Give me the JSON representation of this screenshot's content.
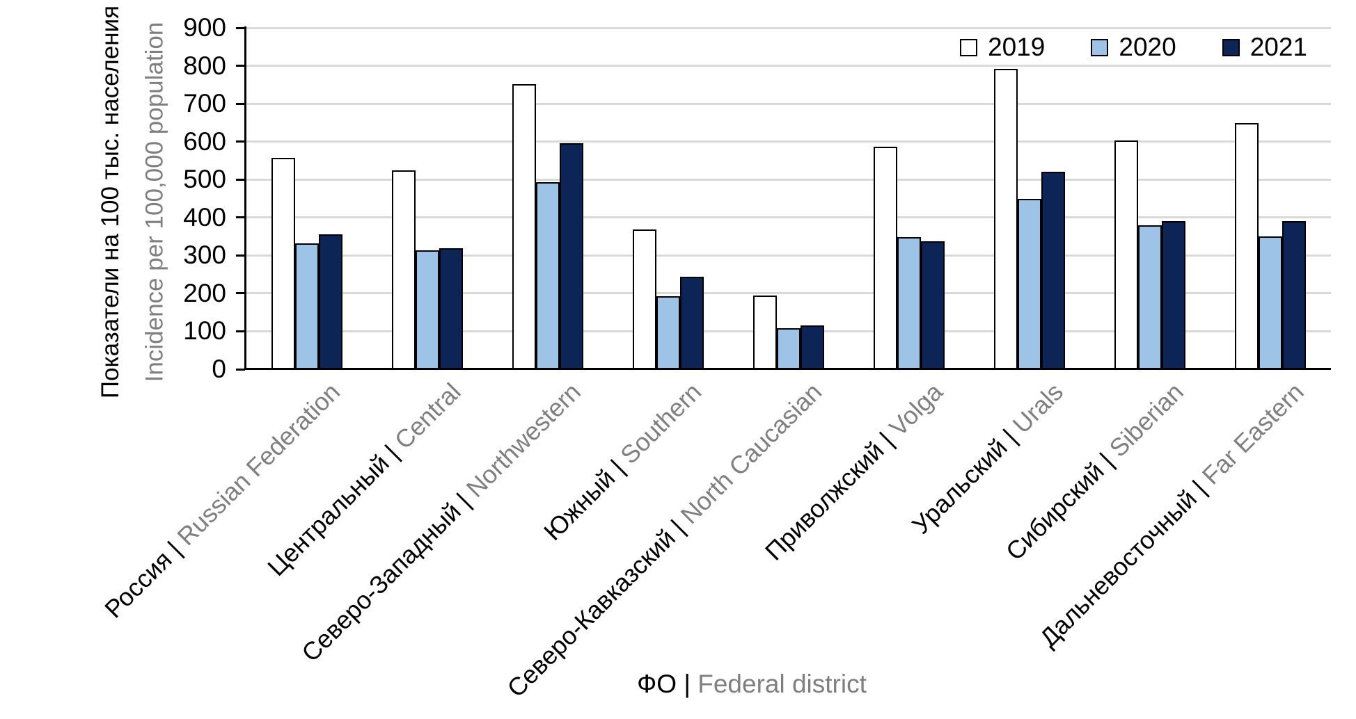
{
  "y_axis": {
    "title_ru": "Показатели на 100 тыс. населения",
    "title_en": "Incidence per 100,000 population",
    "tick_labels": [
      "0",
      "100",
      "200",
      "300",
      "400",
      "500",
      "600",
      "700",
      "800",
      "900"
    ]
  },
  "x_axis": {
    "title_ru": "ФО",
    "title_separator": "|",
    "title_en": "Federal district"
  },
  "colors": {
    "bar_border": "#000000",
    "gridline": "#D9D9D9",
    "primary_text": "#000000",
    "secondary_text": "#7F7F7F",
    "series_2019_fill": "#FFFFFF",
    "series_2020_fill": "#9DC3E6",
    "series_2021_fill": "#0D2556"
  },
  "chart_data": {
    "type": "bar",
    "title": "",
    "xlabel": "ФО | Federal district",
    "ylabel": "Показатели на 100 тыс. населения | Incidence per 100,000 population",
    "ylim": [
      0,
      900
    ],
    "ytick_step": 100,
    "grid": true,
    "legend_position": "top-right",
    "category_separator": "|",
    "categories": [
      {
        "ru": "Россия",
        "en": "Russian Federation"
      },
      {
        "ru": "Центральный",
        "en": "Central"
      },
      {
        "ru": "Северо-Западный",
        "en": "Northwestern"
      },
      {
        "ru": "Южный",
        "en": "Southern"
      },
      {
        "ru": "Северо-Кавказский",
        "en": "North Caucasian"
      },
      {
        "ru": "Приволжский",
        "en": "Volga"
      },
      {
        "ru": "Уральский",
        "en": "Urals"
      },
      {
        "ru": "Сибирский",
        "en": "Siberian"
      },
      {
        "ru": "Дальневосточный",
        "en": "Far Eastern"
      }
    ],
    "series": [
      {
        "name": "2019",
        "color": "#FFFFFF",
        "values": [
          558,
          524,
          752,
          368,
          195,
          587,
          792,
          603,
          649
        ]
      },
      {
        "name": "2020",
        "color": "#9DC3E6",
        "values": [
          331,
          314,
          493,
          193,
          109,
          348,
          449,
          380,
          351
        ]
      },
      {
        "name": "2021",
        "color": "#0D2556",
        "values": [
          356,
          319,
          595,
          243,
          115,
          338,
          520,
          391,
          390
        ]
      }
    ]
  }
}
